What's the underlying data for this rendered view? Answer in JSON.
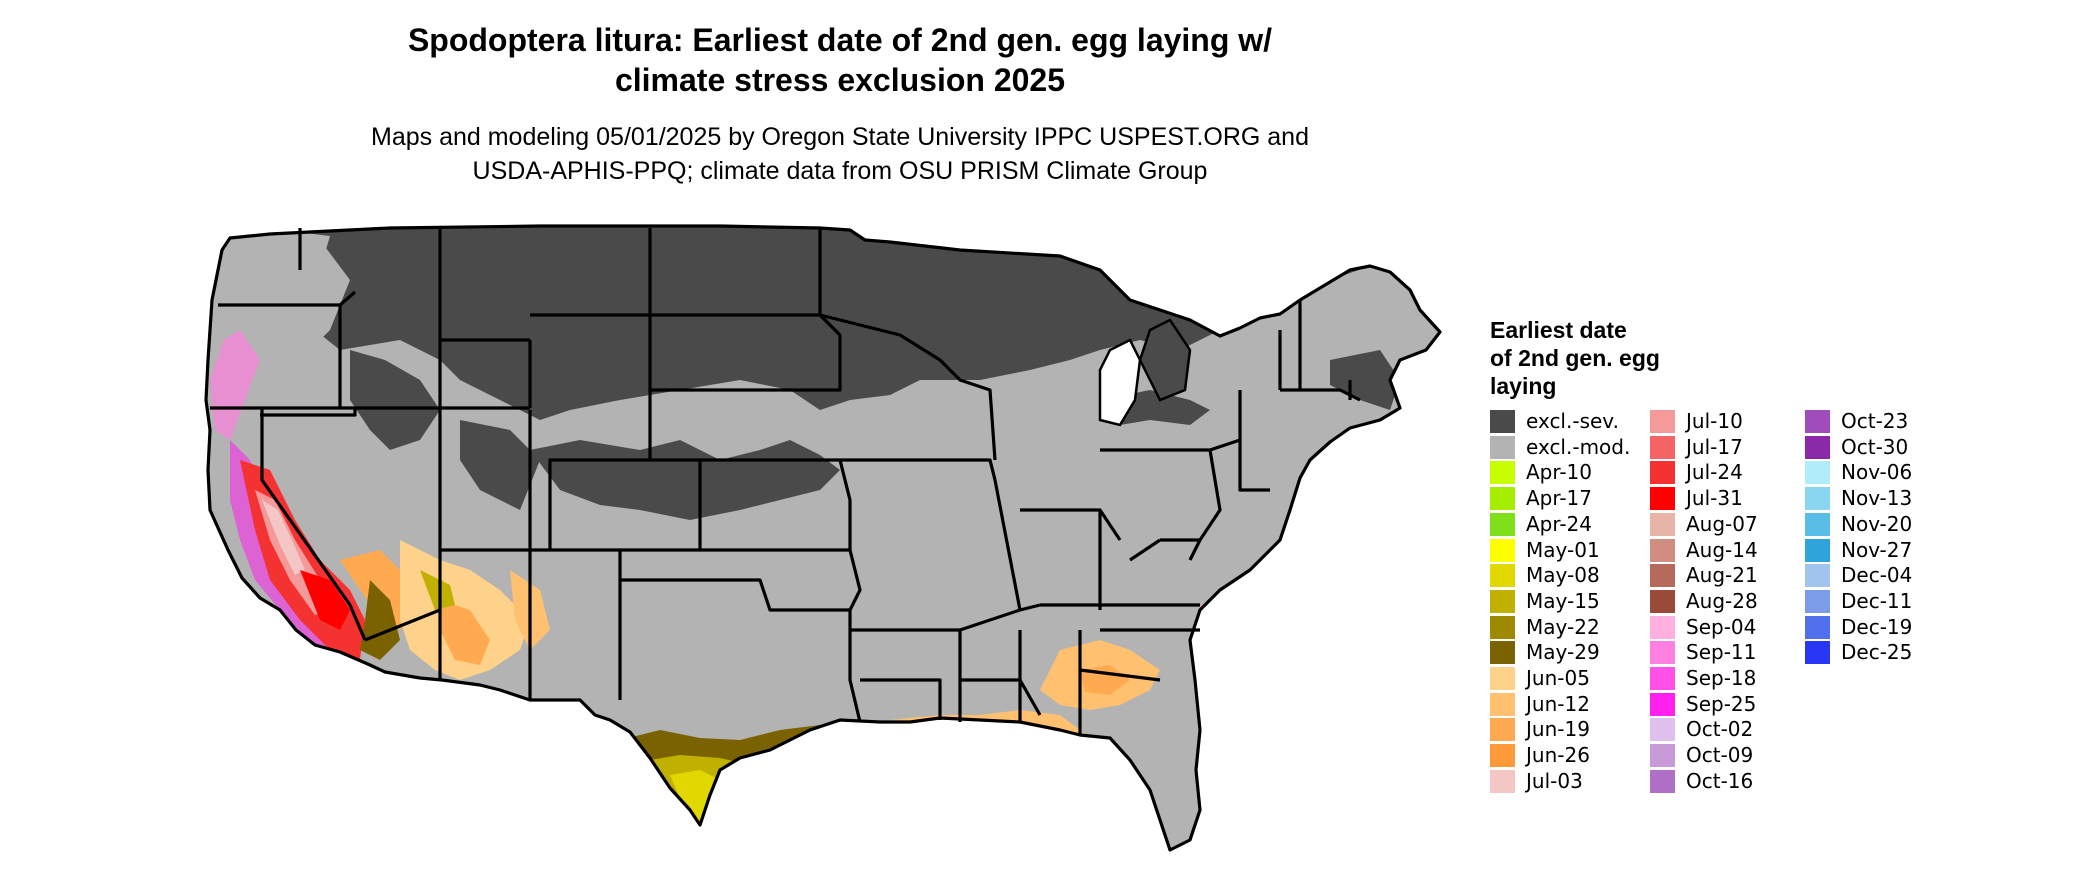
{
  "title_line1": "Spodoptera litura: Earliest date of 2nd gen. egg laying w/",
  "title_line2": "climate stress exclusion 2025",
  "subtitle_line1": "Maps and modeling 05/01/2025 by Oregon State University IPPC USPEST.ORG and",
  "subtitle_line2": "USDA-APHIS-PPQ; climate data from OSU PRISM Climate Group",
  "legend": {
    "title_lines": [
      "Earliest date",
      "of 2nd gen. egg",
      "laying"
    ],
    "items": [
      {
        "label": "excl.-sev.",
        "color": "#4a4a4a"
      },
      {
        "label": "excl.-mod.",
        "color": "#b3b3b3"
      },
      {
        "label": "Apr-10",
        "color": "#c8ff00"
      },
      {
        "label": "Apr-17",
        "color": "#a6ee00"
      },
      {
        "label": "Apr-24",
        "color": "#7fe01a"
      },
      {
        "label": "May-01",
        "color": "#ffff00"
      },
      {
        "label": "May-08",
        "color": "#e0d800"
      },
      {
        "label": "May-15",
        "color": "#c0b000"
      },
      {
        "label": "May-22",
        "color": "#9e8a00"
      },
      {
        "label": "May-29",
        "color": "#7a6200"
      },
      {
        "label": "Jun-05",
        "color": "#ffd28c"
      },
      {
        "label": "Jun-12",
        "color": "#ffc070"
      },
      {
        "label": "Jun-19",
        "color": "#ffaa50"
      },
      {
        "label": "Jun-26",
        "color": "#ff9a38"
      },
      {
        "label": "Jul-03",
        "color": "#f5c6c6"
      },
      {
        "label": "Jul-10",
        "color": "#f59a9a"
      },
      {
        "label": "Jul-17",
        "color": "#f56464"
      },
      {
        "label": "Jul-24",
        "color": "#f53232"
      },
      {
        "label": "Jul-31",
        "color": "#ff0000"
      },
      {
        "label": "Aug-07",
        "color": "#e8b4a8"
      },
      {
        "label": "Aug-14",
        "color": "#cf8e80"
      },
      {
        "label": "Aug-21",
        "color": "#b56a5c"
      },
      {
        "label": "Aug-28",
        "color": "#9a4a38"
      },
      {
        "label": "Sep-04",
        "color": "#ffb0e0"
      },
      {
        "label": "Sep-11",
        "color": "#ff80e0"
      },
      {
        "label": "Sep-18",
        "color": "#ff50e8"
      },
      {
        "label": "Sep-25",
        "color": "#ff20f0"
      },
      {
        "label": "Oct-02",
        "color": "#e0c0ec"
      },
      {
        "label": "Oct-09",
        "color": "#c89ad8"
      },
      {
        "label": "Oct-16",
        "color": "#b070c8"
      },
      {
        "label": "Oct-23",
        "color": "#a04cbc"
      },
      {
        "label": "Oct-30",
        "color": "#8a2aa8"
      },
      {
        "label": "Nov-06",
        "color": "#b0ecfa"
      },
      {
        "label": "Nov-13",
        "color": "#88d6f0"
      },
      {
        "label": "Nov-20",
        "color": "#58bee6"
      },
      {
        "label": "Nov-27",
        "color": "#2ea4da"
      },
      {
        "label": "Dec-04",
        "color": "#a0c4ee"
      },
      {
        "label": "Dec-11",
        "color": "#7c9cea"
      },
      {
        "label": "Dec-19",
        "color": "#5070ee"
      },
      {
        "label": "Dec-25",
        "color": "#2a36f5"
      }
    ]
  }
}
